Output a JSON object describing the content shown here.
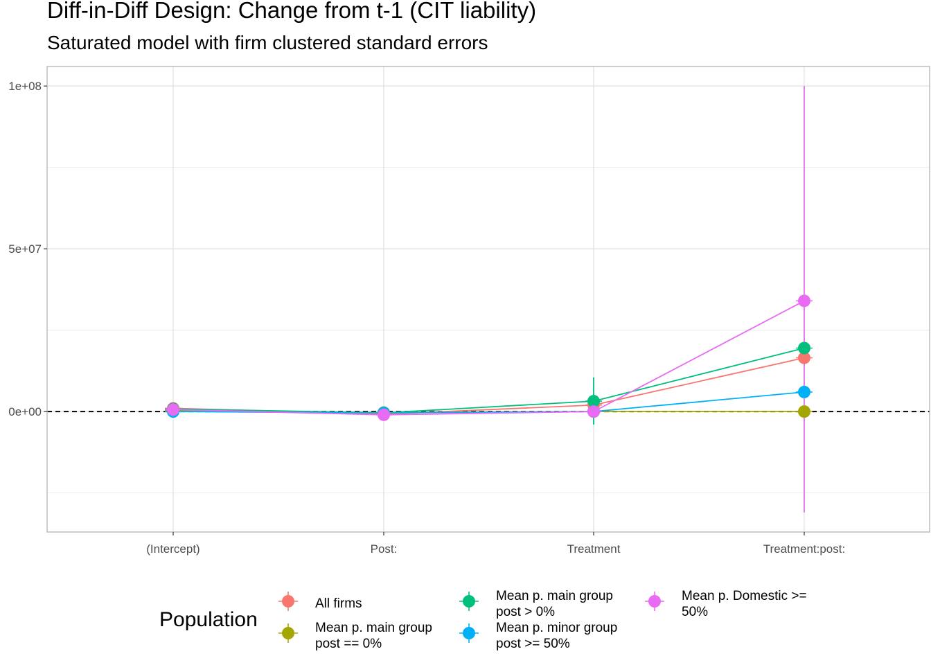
{
  "title": "Diff-in-Diff Design: Change from t-1 (CIT liability)",
  "subtitle": "Saturated model with firm clustered standard errors",
  "chart_data": {
    "type": "line",
    "categories": [
      "(Intercept)",
      "Post:",
      "Treatment",
      "Treatment:post:"
    ],
    "y_ticks": [
      {
        "value": 0,
        "label": "0e+00"
      },
      {
        "value": 50000000,
        "label": "5e+07"
      },
      {
        "value": 100000000,
        "label": "1e+08"
      }
    ],
    "ylim": [
      -37000000,
      106000000
    ],
    "reference_line": {
      "value": 0,
      "style": "dashed"
    },
    "grid": true,
    "legend": {
      "title": "Population",
      "position": "bottom"
    },
    "series": [
      {
        "name": "All firms",
        "color": "#F8766D",
        "values": [
          1000000,
          -800000,
          2000000,
          16500000
        ],
        "lower": [
          null,
          null,
          null,
          null
        ],
        "upper": [
          null,
          null,
          null,
          null
        ]
      },
      {
        "name": "Mean p. main group post == 0%",
        "color": "#A3A500",
        "values": [
          300000,
          -300000,
          0,
          0
        ],
        "lower": [
          null,
          null,
          null,
          null
        ],
        "upper": [
          null,
          null,
          null,
          null
        ]
      },
      {
        "name": "Mean p. main group post > 0%",
        "color": "#00BF7D",
        "values": [
          800000,
          -400000,
          3200000,
          19500000
        ],
        "lower": [
          null,
          null,
          -4000000,
          null
        ],
        "upper": [
          null,
          null,
          10500000,
          null
        ]
      },
      {
        "name": "Mean p. minor group post >= 50%",
        "color": "#00B0F6",
        "values": [
          0,
          -400000,
          0,
          6000000
        ],
        "lower": [
          null,
          null,
          null,
          null
        ],
        "upper": [
          null,
          null,
          null,
          null
        ]
      },
      {
        "name": "Mean p. Domestic >= 50%",
        "color": "#E76BF3",
        "values": [
          600000,
          -1000000,
          0,
          34000000
        ],
        "lower": [
          null,
          null,
          null,
          -31000000
        ],
        "upper": [
          null,
          null,
          null,
          100000000
        ]
      }
    ]
  }
}
